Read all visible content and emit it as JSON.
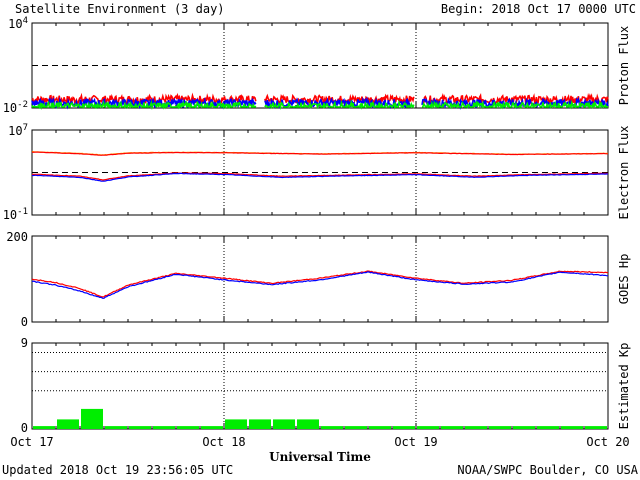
{
  "header": {
    "title": "Satellite Environment (3 day)",
    "begin": "Begin:  2018 Oct 17 0000 UTC"
  },
  "footer": {
    "updated": "Updated 2018 Oct 19 23:56:05 UTC",
    "credit": "NOAA/SWPC Boulder, CO USA",
    "xlabel": "Universal Time"
  },
  "colors": {
    "red": "#ff0000",
    "blue": "#0000ff",
    "green": "#00ee00",
    "orange": "#ffa500"
  },
  "chart_data": [
    {
      "type": "line",
      "ylabel": "Proton Flux",
      "yscale": "log",
      "ylim": [
        0.01,
        10000
      ],
      "yticks": [
        {
          "value": 0.01,
          "base": "10",
          "exp": "-2"
        },
        {
          "value": 10000,
          "base": "10",
          "exp": "4"
        }
      ],
      "threshold": 10,
      "x_days": [
        0,
        3
      ],
      "gaps": [
        [
          1.17,
          1.21
        ],
        [
          1.99,
          2.03
        ]
      ],
      "series": [
        {
          "color": "red",
          "level": 0.04
        },
        {
          "color": "blue",
          "level": 0.022
        },
        {
          "color": "green",
          "level": 0.013
        }
      ]
    },
    {
      "type": "line",
      "ylabel": "Electron Flux",
      "yscale": "log",
      "ylim": [
        0.1,
        10000000
      ],
      "yticks": [
        {
          "value": 0.1,
          "base": "10",
          "exp": "-1"
        },
        {
          "value": 10000000,
          "base": "10",
          "exp": "7"
        }
      ],
      "threshold": 1000,
      "x_days": [
        0,
        3
      ],
      "series": [
        {
          "color": "orange",
          "points": [
            [
              0,
              90000
            ],
            [
              0.25,
              62000
            ],
            [
              0.37,
              45000
            ],
            [
              0.5,
              70000
            ],
            [
              0.75,
              80000
            ],
            [
              1,
              76000
            ],
            [
              1.5,
              56000
            ],
            [
              2,
              76000
            ],
            [
              2.5,
              52000
            ],
            [
              3,
              62000
            ]
          ]
        },
        {
          "color": "red",
          "points": [
            [
              0,
              85000
            ],
            [
              0.25,
              58000
            ],
            [
              0.37,
              42000
            ],
            [
              0.5,
              66000
            ],
            [
              0.75,
              75000
            ],
            [
              1,
              72000
            ],
            [
              1.5,
              54000
            ],
            [
              2,
              72000
            ],
            [
              2.5,
              50000
            ],
            [
              3,
              60000
            ]
          ]
        },
        {
          "color": "red",
          "points": [
            [
              0,
              700
            ],
            [
              0.25,
              450
            ],
            [
              0.37,
              200
            ],
            [
              0.5,
              480
            ],
            [
              0.75,
              900
            ],
            [
              1,
              800
            ],
            [
              1.3,
              450
            ],
            [
              1.6,
              560
            ],
            [
              2,
              750
            ],
            [
              2.3,
              450
            ],
            [
              2.6,
              650
            ],
            [
              3,
              850
            ]
          ]
        },
        {
          "color": "blue",
          "points": [
            [
              0,
              550
            ],
            [
              0.25,
              350
            ],
            [
              0.37,
              150
            ],
            [
              0.5,
              380
            ],
            [
              0.75,
              800
            ],
            [
              1,
              650
            ],
            [
              1.3,
              350
            ],
            [
              1.6,
              470
            ],
            [
              2,
              620
            ],
            [
              2.3,
              360
            ],
            [
              2.6,
              550
            ],
            [
              3,
              720
            ]
          ]
        }
      ]
    },
    {
      "type": "line",
      "ylabel": "GOES Hp",
      "ylim": [
        0,
        200
      ],
      "yticks": [
        {
          "value": 0,
          "label": "0"
        },
        {
          "value": 200,
          "label": "200"
        }
      ],
      "x_days": [
        0,
        3
      ],
      "series": [
        {
          "color": "red",
          "points": [
            [
              0,
              100
            ],
            [
              0.12,
              92
            ],
            [
              0.25,
              78
            ],
            [
              0.37,
              58
            ],
            [
              0.5,
              86
            ],
            [
              0.75,
              113
            ],
            [
              1,
              102
            ],
            [
              1.25,
              90
            ],
            [
              1.5,
              102
            ],
            [
              1.75,
              118
            ],
            [
              2,
              102
            ],
            [
              2.25,
              90
            ],
            [
              2.5,
              97
            ],
            [
              2.75,
              118
            ],
            [
              3,
              115
            ]
          ]
        },
        {
          "color": "blue",
          "points": [
            [
              0,
              95
            ],
            [
              0.12,
              86
            ],
            [
              0.25,
              72
            ],
            [
              0.37,
              55
            ],
            [
              0.5,
              82
            ],
            [
              0.75,
              111
            ],
            [
              1,
              98
            ],
            [
              1.25,
              87
            ],
            [
              1.5,
              98
            ],
            [
              1.75,
              116
            ],
            [
              2,
              98
            ],
            [
              2.25,
              88
            ],
            [
              2.5,
              93
            ],
            [
              2.75,
              116
            ],
            [
              3,
              108
            ]
          ]
        }
      ]
    },
    {
      "type": "bar",
      "ylabel": "Estimated Kp",
      "ylim": [
        0,
        9
      ],
      "yticks": [
        {
          "value": 0,
          "label": "0"
        },
        {
          "value": 9,
          "label": "9"
        }
      ],
      "grid_lines": [
        4,
        6,
        8
      ],
      "bar_color": "green",
      "values": [
        0.3,
        1,
        2.1,
        0.3,
        0.3,
        0.3,
        0.3,
        0.3,
        1,
        1,
        1,
        1,
        0.3,
        0.3,
        0.3,
        0.3,
        0.3,
        0.3,
        0.3,
        0.3,
        0.3,
        0.3,
        0.3,
        0.3
      ]
    }
  ],
  "xaxis": {
    "ticks": [
      "Oct 17",
      "Oct 18",
      "Oct 19",
      "Oct 20"
    ]
  }
}
